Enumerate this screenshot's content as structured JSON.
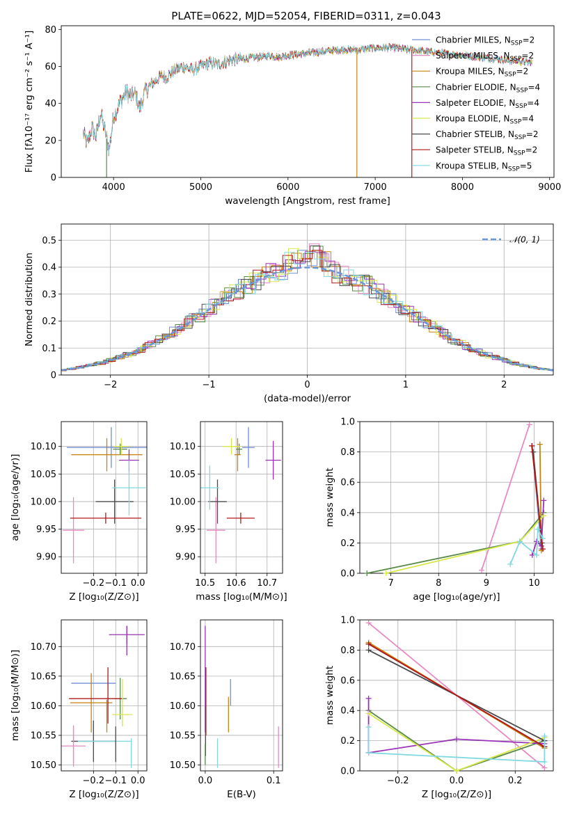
{
  "figure": {
    "title": "PLATE=0622, MJD=52054, FIBERID=0311, z=0.043"
  },
  "series": [
    {
      "name": "Chabrier MILES",
      "nssp": "2",
      "color": "#6f8fd8"
    },
    {
      "name": "Salpeter MILES",
      "nssp": "2",
      "color": "#e78ac3"
    },
    {
      "name": "Kroupa MILES",
      "nssp": "2",
      "color": "#c8820e"
    },
    {
      "name": "Chabrier ELODIE",
      "nssp": "4",
      "color": "#5a8a4a"
    },
    {
      "name": "Salpeter ELODIE",
      "nssp": "4",
      "color": "#9a32b8"
    },
    {
      "name": "Kroupa ELODIE",
      "nssp": "4",
      "color": "#d8e84a"
    },
    {
      "name": "Chabrier STELIB",
      "nssp": "2",
      "color": "#4a4a4a"
    },
    {
      "name": "Salpeter STELIB",
      "nssp": "2",
      "color": "#b01818"
    },
    {
      "name": "Kroupa STELIB",
      "nssp": "5",
      "color": "#80d8e0"
    }
  ],
  "chart_data": [
    {
      "id": "spectrum",
      "type": "line",
      "xlabel": "wavelength [Angstrom, rest frame]",
      "ylabel": "Flux [fλ10⁻¹⁷ erg cm⁻² s⁻¹ A⁻¹]",
      "xlim": [
        3400,
        9050
      ],
      "ylim": [
        0,
        82
      ],
      "xticks": [
        4000,
        5000,
        6000,
        7000,
        8000,
        9000
      ],
      "yticks": [
        0,
        20,
        40,
        60,
        80
      ],
      "grid": false,
      "legend": "right",
      "x_range_data": [
        3650,
        8800
      ],
      "envelope": [
        [
          3650,
          24
        ],
        [
          3700,
          18
        ],
        [
          3750,
          27
        ],
        [
          3800,
          22
        ],
        [
          3850,
          35
        ],
        [
          3900,
          25
        ],
        [
          3950,
          15
        ],
        [
          4000,
          33
        ],
        [
          4050,
          38
        ],
        [
          4100,
          43
        ],
        [
          4150,
          46
        ],
        [
          4200,
          44
        ],
        [
          4250,
          45
        ],
        [
          4300,
          37
        ],
        [
          4350,
          45
        ],
        [
          4400,
          49
        ],
        [
          4450,
          51
        ],
        [
          4500,
          53
        ],
        [
          4550,
          55
        ],
        [
          4600,
          54
        ],
        [
          4700,
          58
        ],
        [
          4800,
          60
        ],
        [
          4900,
          58
        ],
        [
          5000,
          60
        ],
        [
          5100,
          62
        ],
        [
          5200,
          61
        ],
        [
          5300,
          63
        ],
        [
          5400,
          64
        ],
        [
          5500,
          64
        ],
        [
          5600,
          65
        ],
        [
          5700,
          65
        ],
        [
          5800,
          66
        ],
        [
          5900,
          65
        ],
        [
          6000,
          66
        ],
        [
          6200,
          67
        ],
        [
          6400,
          68
        ],
        [
          6600,
          69
        ],
        [
          6800,
          69
        ],
        [
          7000,
          70
        ],
        [
          7200,
          70
        ],
        [
          7400,
          69
        ],
        [
          7600,
          68
        ],
        [
          7800,
          67
        ],
        [
          8000,
          66
        ],
        [
          8200,
          65
        ],
        [
          8400,
          64
        ],
        [
          8600,
          63
        ],
        [
          8800,
          62
        ]
      ],
      "drops": [
        {
          "x": 3920,
          "series": 3
        },
        {
          "x": 6790,
          "series": 2
        },
        {
          "x": 7420,
          "series": 7
        }
      ]
    },
    {
      "id": "residuals",
      "type": "bar",
      "xlabel": "(data-model)/error",
      "ylabel": "Normed distribution",
      "xlim": [
        -2.5,
        2.5
      ],
      "ylim": [
        0,
        0.56
      ],
      "xticks": [
        -2,
        -1,
        0,
        1,
        2
      ],
      "yticks": [
        0,
        0.1,
        0.2,
        0.3,
        0.4,
        0.5
      ],
      "grid": true,
      "legend": "top-right",
      "reference_curve": {
        "label": "𝒩(0, 1)",
        "mean": 0,
        "sigma": 1,
        "color": "#6a95d8"
      }
    },
    {
      "id": "age_vs_Z",
      "type": "scatter",
      "xlabel": "Z [log₁₀(Z/Z⊙)]",
      "ylabel": "age  [log₁₀(age/yr)]",
      "xlim": [
        -0.345,
        0.04
      ],
      "ylim": [
        9.87,
        10.145
      ],
      "xticks": [
        -0.2,
        -0.1,
        0.0
      ],
      "xticklabels": [
        "−0.2",
        "−0.1",
        "0.0"
      ],
      "yticks": [
        9.9,
        9.95,
        10.0,
        10.05,
        10.1
      ],
      "yticklabels": [
        "9.90",
        "9.95",
        "10.00",
        "10.05",
        "10.10"
      ],
      "grid": true,
      "points": [
        {
          "s": 0,
          "x": -0.12,
          "y": 10.098,
          "xerr": 0.2,
          "yerr": 0.037
        },
        {
          "s": 1,
          "x": -0.29,
          "y": 9.948,
          "xerr": 0.048,
          "yerr": 0.06
        },
        {
          "s": 2,
          "x": -0.14,
          "y": 10.085,
          "xerr": 0.16,
          "yerr": 0.03
        },
        {
          "s": 3,
          "x": -0.08,
          "y": 10.095,
          "xerr": 0.032,
          "yerr": 0.01
        },
        {
          "s": 4,
          "x": -0.04,
          "y": 10.075,
          "xerr": 0.045,
          "yerr": 0.02
        },
        {
          "s": 5,
          "x": -0.075,
          "y": 10.1,
          "xerr": 0.035,
          "yerr": 0.015
        },
        {
          "s": 6,
          "x": -0.105,
          "y": 10.0,
          "xerr": 0.085,
          "yerr": 0.04
        },
        {
          "s": 7,
          "x": -0.145,
          "y": 9.97,
          "xerr": 0.16,
          "yerr": 0.01
        },
        {
          "s": 8,
          "x": -0.04,
          "y": 10.025,
          "xerr": 0.075,
          "yerr": 0.05
        }
      ]
    },
    {
      "id": "age_vs_mass",
      "type": "scatter",
      "xlabel": "mass [log₁₀(M/M⊙)]",
      "ylabel": "",
      "xlim": [
        10.485,
        10.75
      ],
      "ylim": [
        9.87,
        10.145
      ],
      "xticks": [
        10.5,
        10.6,
        10.7
      ],
      "xticklabels": [
        "10.5",
        "10.6",
        "10.7"
      ],
      "yticks": [
        9.9,
        9.95,
        10.0,
        10.05,
        10.1
      ],
      "yticklabels": [
        "9.90",
        "9.95",
        "10.00",
        "10.05",
        "10.10"
      ],
      "grid": true,
      "points": [
        {
          "s": 0,
          "x": 10.64,
          "y": 10.098,
          "xerr": 0.02,
          "yerr": 0.037
        },
        {
          "s": 1,
          "x": 10.535,
          "y": 9.948,
          "xerr": 0.03,
          "yerr": 0.06
        },
        {
          "s": 2,
          "x": 10.605,
          "y": 10.085,
          "xerr": 0.01,
          "yerr": 0.03
        },
        {
          "s": 3,
          "x": 10.61,
          "y": 10.095,
          "xerr": 0.01,
          "yerr": 0.01
        },
        {
          "s": 4,
          "x": 10.72,
          "y": 10.075,
          "xerr": 0.025,
          "yerr": 0.035
        },
        {
          "s": 5,
          "x": 10.585,
          "y": 10.1,
          "xerr": 0.03,
          "yerr": 0.015
        },
        {
          "s": 6,
          "x": 10.54,
          "y": 10.0,
          "xerr": 0.03,
          "yerr": 0.04
        },
        {
          "s": 7,
          "x": 10.615,
          "y": 9.97,
          "xerr": 0.045,
          "yerr": 0.01
        },
        {
          "s": 8,
          "x": 10.515,
          "y": 10.025,
          "xerr": 0.03,
          "yerr": 0.04
        }
      ]
    },
    {
      "id": "mass_weight_vs_age",
      "type": "line",
      "xlabel": "age  [log₁₀(age/yr)]",
      "ylabel": "mass weight",
      "xlim": [
        6.35,
        10.4
      ],
      "ylim": [
        0,
        1
      ],
      "xticks": [
        7,
        8,
        9,
        10
      ],
      "yticks": [
        0,
        0.2,
        0.4,
        0.6,
        0.8,
        1.0
      ],
      "yticklabels": [
        "0.0",
        "0.2",
        "0.4",
        "0.6",
        "0.8",
        "1.0"
      ],
      "grid": true,
      "lines": [
        {
          "s": 0,
          "x": [
            9.96,
            10.15
          ],
          "y": [
            0.84,
            0.16
          ]
        },
        {
          "s": 1,
          "x": [
            8.9,
            9.9
          ],
          "y": [
            0.02,
            0.98
          ]
        },
        {
          "s": 2,
          "x": [
            10.12,
            10.15
          ],
          "y": [
            0.85,
            0.15
          ]
        },
        {
          "s": 3,
          "x": [
            6.5,
            9.7,
            10.2
          ],
          "y": [
            0.0,
            0.21,
            0.4
          ]
        },
        {
          "s": 4,
          "x": [
            9.96,
            10.05,
            10.15,
            10.2
          ],
          "y": [
            0.12,
            0.21,
            0.18,
            0.48
          ]
        },
        {
          "s": 5,
          "x": [
            6.9,
            9.7,
            10.2
          ],
          "y": [
            0.0,
            0.21,
            0.38
          ]
        },
        {
          "s": 6,
          "x": [
            9.98,
            10.16
          ],
          "y": [
            0.8,
            0.2
          ]
        },
        {
          "s": 7,
          "x": [
            9.95,
            10.18
          ],
          "y": [
            0.84,
            0.16
          ]
        },
        {
          "s": 8,
          "x": [
            9.5,
            9.7,
            10.05,
            10.08,
            10.18
          ],
          "y": [
            0.06,
            0.21,
            0.12,
            0.29,
            0.23
          ]
        }
      ]
    },
    {
      "id": "mass_vs_Z",
      "type": "scatter",
      "xlabel": "Z [log₁₀(Z/Z⊙)]",
      "ylabel": "mass [log₁₀(M/M⊙)]",
      "xlim": [
        -0.345,
        0.04
      ],
      "ylim": [
        10.49,
        10.745
      ],
      "xticks": [
        -0.2,
        -0.1,
        0.0
      ],
      "xticklabels": [
        "−0.2",
        "−0.1",
        "0.0"
      ],
      "yticks": [
        10.5,
        10.55,
        10.6,
        10.65,
        10.7
      ],
      "yticklabels": [
        "10.50",
        "10.55",
        "10.60",
        "10.65",
        "10.70"
      ],
      "grid": true,
      "points": [
        {
          "s": 0,
          "x": -0.2,
          "y": 10.638,
          "xerr": 0.1,
          "yerr": 0.0
        },
        {
          "s": 1,
          "x": -0.29,
          "y": 10.532,
          "xerr": 0.055,
          "yerr": 0.035
        },
        {
          "s": 2,
          "x": -0.21,
          "y": 10.605,
          "xerr": 0.095,
          "yerr": 0.05
        },
        {
          "s": 3,
          "x": -0.08,
          "y": 10.612,
          "xerr": 0.03,
          "yerr": 0.035
        },
        {
          "s": 4,
          "x": -0.05,
          "y": 10.72,
          "xerr": 0.08,
          "yerr": 0.015
        },
        {
          "s": 5,
          "x": -0.07,
          "y": 10.585,
          "xerr": 0.045,
          "yerr": 0.02
        },
        {
          "s": 6,
          "x": -0.2,
          "y": 10.54,
          "xerr": 0.1,
          "yerr": 0.035
        },
        {
          "s": 7,
          "x": -0.19,
          "y": 10.612,
          "xerr": 0.12,
          "yerr": 0.0
        },
        {
          "s": 8,
          "x": -0.15,
          "y": 10.54,
          "xerr": 0.12,
          "yerr": 0.0
        }
      ],
      "vlines": [
        {
          "s": 7,
          "x": -0.135,
          "y0": 10.57,
          "y1": 10.665
        },
        {
          "s": 2,
          "x": -0.14,
          "y0": 10.555,
          "y1": 10.61
        },
        {
          "s": 6,
          "x": -0.1,
          "y0": 10.505,
          "y1": 10.565
        },
        {
          "s": 5,
          "x": -0.07,
          "y0": 10.565,
          "y1": 10.645
        },
        {
          "s": 8,
          "x": -0.03,
          "y0": 10.495,
          "y1": 10.545
        },
        {
          "s": 4,
          "x": -0.05,
          "y0": 10.685,
          "y1": 10.735
        },
        {
          "s": 1,
          "x": -0.29,
          "y0": 10.5,
          "y1": 10.565
        }
      ]
    },
    {
      "id": "mass_vs_EBV",
      "type": "scatter",
      "xlabel": "E(B-V)",
      "ylabel": "",
      "xlim": [
        -0.007,
        0.113
      ],
      "ylim": [
        10.49,
        10.745
      ],
      "xticks": [
        0.0,
        0.1
      ],
      "xticklabels": [
        "0.0",
        "0.1"
      ],
      "yticks": [
        10.5,
        10.55,
        10.6,
        10.65,
        10.7
      ],
      "yticklabels": [
        "10.50",
        "10.55",
        "10.60",
        "10.65",
        "10.70"
      ],
      "grid": true,
      "vlines": [
        {
          "s": 4,
          "x": 0.0,
          "y0": 10.555,
          "y1": 10.735
        },
        {
          "s": 7,
          "x": 0.001,
          "y0": 10.55,
          "y1": 10.665
        },
        {
          "s": 6,
          "x": 0.0005,
          "y0": 10.515,
          "y1": 10.6
        },
        {
          "s": 3,
          "x": 0.0,
          "y0": 10.5,
          "y1": 10.535
        },
        {
          "s": 0,
          "x": 0.037,
          "y0": 10.6,
          "y1": 10.645
        },
        {
          "s": 2,
          "x": 0.034,
          "y0": 10.555,
          "y1": 10.615
        },
        {
          "s": 8,
          "x": 0.018,
          "y0": 10.495,
          "y1": 10.545
        },
        {
          "s": 1,
          "x": 0.107,
          "y0": 10.495,
          "y1": 10.565
        }
      ]
    },
    {
      "id": "mass_weight_vs_Z",
      "type": "line",
      "xlabel": "Z [log₁₀(Z/Z⊙)]",
      "ylabel": "mass weight",
      "xlim": [
        -0.33,
        0.33
      ],
      "ylim": [
        0,
        1
      ],
      "xticks": [
        -0.2,
        0.0,
        0.2
      ],
      "xticklabels": [
        "−0.2",
        "0.0",
        "0.2"
      ],
      "yticks": [
        0,
        0.2,
        0.4,
        0.6,
        0.8,
        1.0
      ],
      "yticklabels": [
        "0.0",
        "0.2",
        "0.4",
        "0.6",
        "0.8",
        "1.0"
      ],
      "grid": true,
      "lines": [
        {
          "s": 0,
          "x": [
            -0.3,
            0.3
          ],
          "y": [
            0.84,
            0.16
          ]
        },
        {
          "s": 1,
          "x": [
            -0.3,
            0.3
          ],
          "y": [
            0.98,
            0.02
          ]
        },
        {
          "s": 2,
          "x": [
            -0.3,
            0.3
          ],
          "y": [
            0.85,
            0.15
          ]
        },
        {
          "s": 3,
          "x": [
            -0.3,
            0.0,
            0.3
          ],
          "y": [
            0.4,
            0.0,
            0.2
          ]
        },
        {
          "s": 4,
          "x": [
            -0.3,
            -0.3,
            0.0,
            0.3,
            0.3
          ],
          "y": [
            0.48,
            0.12,
            0.21,
            0.18,
            0.2
          ]
        },
        {
          "s": 5,
          "x": [
            -0.3,
            0.0,
            0.3
          ],
          "y": [
            0.38,
            0.0,
            0.22
          ]
        },
        {
          "s": 6,
          "x": [
            -0.3,
            0.3
          ],
          "y": [
            0.8,
            0.2
          ]
        },
        {
          "s": 7,
          "x": [
            -0.3,
            0.3
          ],
          "y": [
            0.84,
            0.16
          ]
        },
        {
          "s": 8,
          "x": [
            -0.3,
            -0.3,
            0.3,
            0.3
          ],
          "y": [
            0.29,
            0.12,
            0.06,
            0.23
          ]
        }
      ]
    }
  ]
}
